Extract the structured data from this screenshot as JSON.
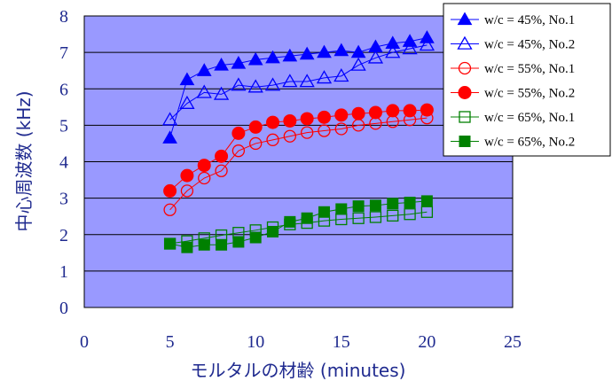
{
  "chart_data": {
    "type": "line",
    "xlabel": "モルタルの材齢 (minutes)",
    "ylabel": "中心周波数 (kHz)",
    "xlim": [
      0,
      25
    ],
    "ylim": [
      0,
      8
    ],
    "xticks": [
      0,
      5,
      10,
      15,
      20,
      25
    ],
    "yticks": [
      0,
      1,
      2,
      3,
      4,
      5,
      6,
      7,
      8
    ],
    "grid": "horizontal",
    "legend_position": "top-right",
    "plot_background": "#9999ff",
    "series": [
      {
        "name": "w/c = 45%, No.1",
        "color": "#0000ff",
        "marker": "triangle",
        "filled": true,
        "x": [
          5,
          6,
          7,
          8,
          9,
          10,
          11,
          12,
          13,
          14,
          15,
          16,
          17,
          18,
          19,
          20
        ],
        "y": [
          4.65,
          6.25,
          6.5,
          6.65,
          6.7,
          6.8,
          6.85,
          6.9,
          6.95,
          7.0,
          7.05,
          7.0,
          7.15,
          7.25,
          7.3,
          7.4
        ]
      },
      {
        "name": "w/c = 45%, No.2",
        "color": "#0000ff",
        "marker": "triangle",
        "filled": false,
        "x": [
          5,
          6,
          7,
          8,
          9,
          10,
          11,
          12,
          13,
          14,
          15,
          16,
          17,
          18,
          19,
          20
        ],
        "y": [
          5.15,
          5.6,
          5.9,
          5.85,
          6.1,
          6.05,
          6.1,
          6.2,
          6.2,
          6.3,
          6.35,
          6.65,
          6.85,
          7.0,
          7.1,
          7.2
        ]
      },
      {
        "name": "w/c = 55%, No.1",
        "color": "#ff0000",
        "marker": "circle",
        "filled": false,
        "x": [
          5,
          6,
          7,
          8,
          9,
          10,
          11,
          12,
          13,
          14,
          15,
          16,
          17,
          18,
          19,
          20
        ],
        "y": [
          2.68,
          3.2,
          3.55,
          3.75,
          4.3,
          4.5,
          4.6,
          4.7,
          4.8,
          4.85,
          4.9,
          5.0,
          5.05,
          5.1,
          5.15,
          5.2
        ]
      },
      {
        "name": "w/c = 55%, No.2",
        "color": "#ff0000",
        "marker": "circle",
        "filled": true,
        "x": [
          5,
          6,
          7,
          8,
          9,
          10,
          11,
          12,
          13,
          14,
          15,
          16,
          17,
          18,
          19,
          20
        ],
        "y": [
          3.2,
          3.62,
          3.9,
          4.15,
          4.78,
          4.95,
          5.08,
          5.12,
          5.18,
          5.22,
          5.28,
          5.32,
          5.35,
          5.4,
          5.4,
          5.42
        ]
      },
      {
        "name": "w/c = 65%, No.1",
        "color": "#008000",
        "marker": "square",
        "filled": false,
        "x": [
          5,
          6,
          7,
          8,
          9,
          10,
          11,
          12,
          13,
          14,
          15,
          16,
          17,
          18,
          19,
          20
        ],
        "y": [
          1.75,
          1.82,
          1.9,
          1.98,
          2.05,
          2.12,
          2.2,
          2.28,
          2.32,
          2.38,
          2.42,
          2.45,
          2.48,
          2.52,
          2.56,
          2.62
        ]
      },
      {
        "name": "w/c = 65%, No.2",
        "color": "#008000",
        "marker": "square",
        "filled": true,
        "x": [
          5,
          6,
          7,
          8,
          9,
          10,
          11,
          12,
          13,
          14,
          15,
          16,
          17,
          18,
          19,
          20
        ],
        "y": [
          1.75,
          1.65,
          1.72,
          1.72,
          1.8,
          1.92,
          2.08,
          2.35,
          2.45,
          2.62,
          2.7,
          2.78,
          2.8,
          2.85,
          2.88,
          2.92
        ]
      }
    ]
  }
}
